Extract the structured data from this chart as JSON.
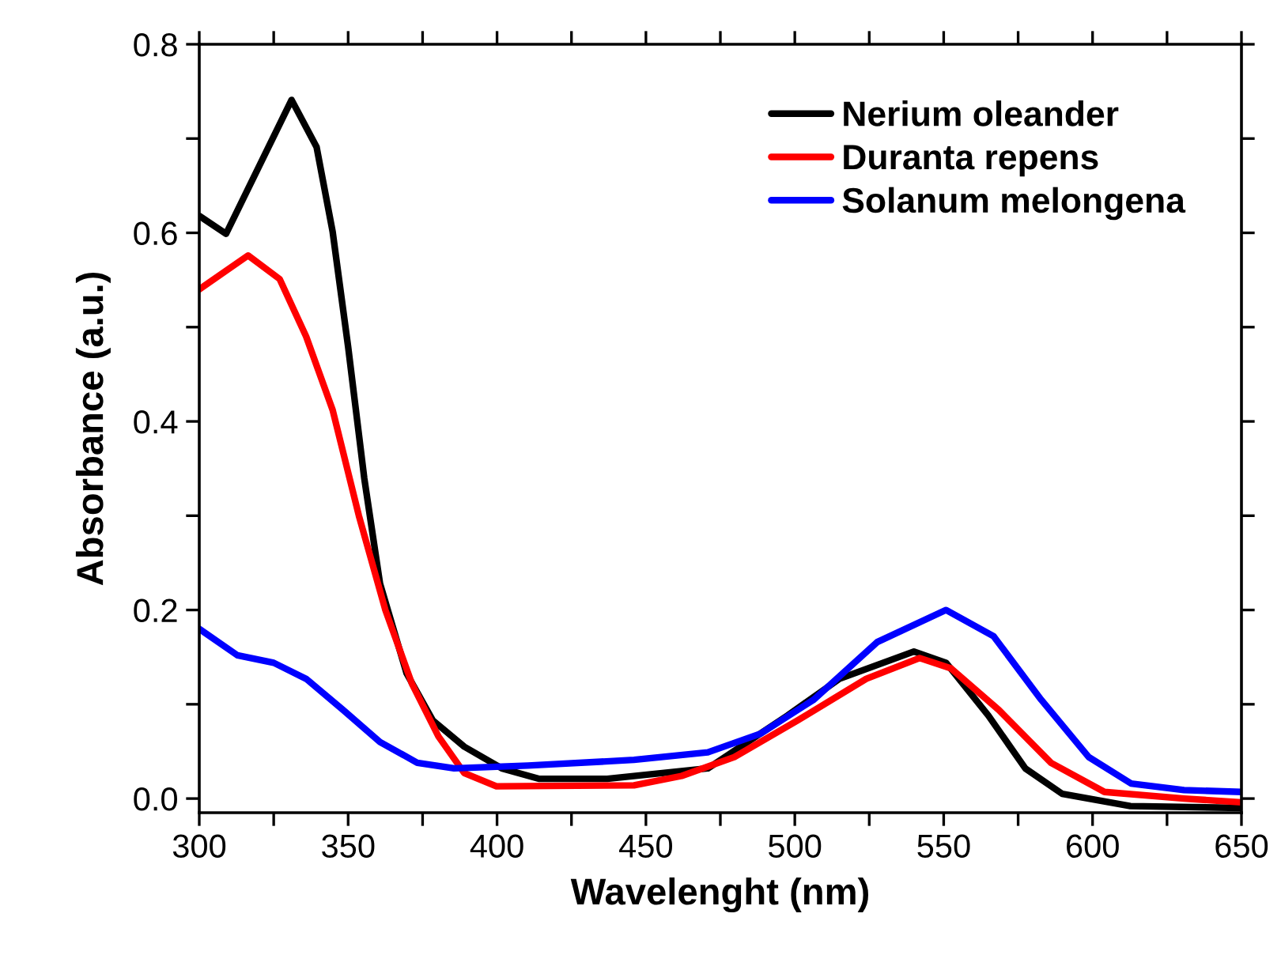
{
  "chart_data": {
    "type": "line",
    "xlabel": "Wavelenght (nm)",
    "ylabel": "Absorbance (a.u.)",
    "xlim": [
      300,
      650
    ],
    "ylim": [
      -0.015,
      0.8
    ],
    "xticks": [
      300,
      {
        "value": 325,
        "label": null
      },
      350,
      {
        "value": 375,
        "label": null
      },
      400,
      {
        "value": 425,
        "label": null
      },
      450,
      {
        "value": 475,
        "label": null
      },
      500,
      {
        "value": 525,
        "label": null
      },
      550,
      {
        "value": 575,
        "label": null
      },
      600,
      {
        "value": 625,
        "label": null
      },
      650
    ],
    "yticks": [
      {
        "value": 0,
        "label": "0.0"
      },
      {
        "value": 0.1,
        "label": null
      },
      0.2,
      {
        "value": 0.3,
        "label": null
      },
      0.4,
      {
        "value": 0.5,
        "label": null
      },
      0.6,
      {
        "value": 0.7,
        "label": null
      },
      0.8
    ],
    "legend": "top right",
    "grid": false,
    "marker": "none",
    "line_style": "solid",
    "series": [
      {
        "name": "Nerium oleander",
        "color": "#000000",
        "x": [
          300,
          309,
          331,
          339.4,
          344.8,
          350,
          355.4,
          360.7,
          369.6,
          378.4,
          389,
          401.6,
          414,
          437,
          470.8,
          497.5,
          515,
          540,
          550.8,
          565,
          577.4,
          589.8,
          612.7,
          650
        ],
        "values": [
          0.618,
          0.599,
          0.741,
          0.691,
          0.601,
          0.479,
          0.34,
          0.228,
          0.133,
          0.083,
          0.055,
          0.032,
          0.021,
          0.021,
          0.032,
          0.088,
          0.127,
          0.156,
          0.144,
          0.088,
          0.032,
          0.005,
          -0.008,
          -0.01
        ]
      },
      {
        "name": "Duranta repens",
        "color": "#ff0000",
        "x": [
          300,
          316.4,
          327,
          335.9,
          344.8,
          353.6,
          362.5,
          371.4,
          380.3,
          389,
          399.8,
          446,
          462,
          479.7,
          501,
          524,
          541.9,
          552.5,
          568.5,
          586,
          604,
          630.7,
          650
        ],
        "values": [
          0.54,
          0.576,
          0.551,
          0.49,
          0.412,
          0.3,
          0.2,
          0.122,
          0.066,
          0.027,
          0.013,
          0.014,
          0.024,
          0.044,
          0.083,
          0.127,
          0.149,
          0.138,
          0.094,
          0.038,
          0.007,
          0.0,
          -0.004
        ]
      },
      {
        "name": "Solanum melongena",
        "color": "#0000ff",
        "x": [
          300,
          312.8,
          325,
          335.9,
          348.3,
          360.7,
          373.2,
          385.6,
          410.4,
          446,
          470.8,
          488.6,
          506.4,
          527.7,
          550.8,
          566.8,
          582.7,
          598.7,
          612.9,
          630.7,
          650
        ],
        "values": [
          0.18,
          0.152,
          0.144,
          0.127,
          0.094,
          0.06,
          0.038,
          0.032,
          0.035,
          0.041,
          0.049,
          0.069,
          0.105,
          0.166,
          0.2,
          0.172,
          0.105,
          0.044,
          0.016,
          0.009,
          0.007
        ]
      }
    ]
  }
}
